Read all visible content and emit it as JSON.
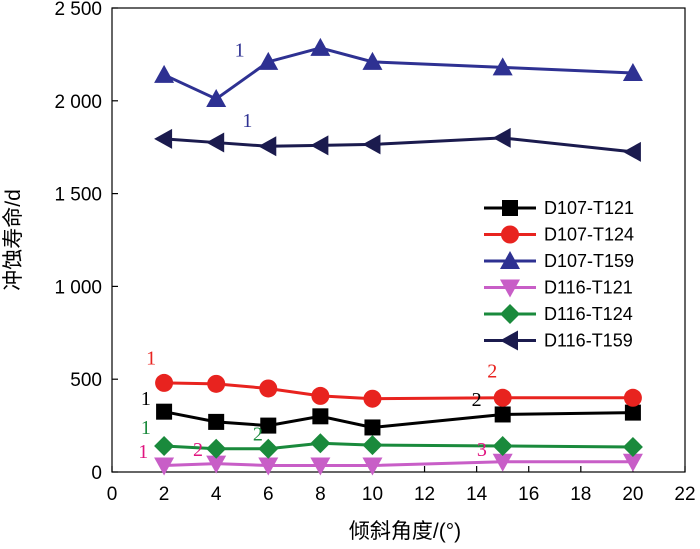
{
  "chart_data": {
    "type": "line",
    "xlabel": "倾斜角度/(°)",
    "ylabel": "冲蚀寿命/d",
    "xlim": [
      0,
      22
    ],
    "ylim": [
      0,
      2500
    ],
    "xticks": [
      "0",
      "2",
      "4",
      "6",
      "8",
      "10",
      "12",
      "14",
      "16",
      "18",
      "20",
      "22"
    ],
    "yticks": [
      "0",
      "500",
      "1 000",
      "1 500",
      "2 000",
      "2 500"
    ],
    "grid": false,
    "legend_position": "right",
    "series": [
      {
        "name": "D107-T121",
        "marker": "square",
        "color": "#000000",
        "x": [
          2,
          4,
          6,
          8,
          10,
          15,
          20
        ],
        "y": [
          325,
          270,
          250,
          300,
          240,
          310,
          320
        ]
      },
      {
        "name": "D107-T124",
        "marker": "circle",
        "color": "#e8231f",
        "x": [
          2,
          4,
          6,
          8,
          10,
          15,
          20
        ],
        "y": [
          480,
          475,
          450,
          410,
          395,
          400,
          400
        ]
      },
      {
        "name": "D107-T159",
        "marker": "triangle-up",
        "color": "#2e3192",
        "x": [
          2,
          4,
          6,
          8,
          10,
          15,
          20
        ],
        "y": [
          2140,
          2010,
          2210,
          2285,
          2210,
          2180,
          2150
        ]
      },
      {
        "name": "D116-T121",
        "marker": "triangle-down",
        "color": "#c85ec7",
        "x": [
          2,
          4,
          6,
          8,
          10,
          15,
          20
        ],
        "y": [
          35,
          45,
          35,
          35,
          35,
          55,
          55
        ]
      },
      {
        "name": "D116-T124",
        "marker": "diamond",
        "color": "#1a8a3c",
        "x": [
          2,
          4,
          6,
          8,
          10,
          15,
          20
        ],
        "y": [
          140,
          125,
          125,
          155,
          145,
          140,
          135
        ]
      },
      {
        "name": "D116-T159",
        "marker": "triangle-left",
        "color": "#1b1b4e",
        "x": [
          2,
          4,
          6,
          8,
          10,
          15,
          20
        ],
        "y": [
          1795,
          1775,
          1755,
          1760,
          1765,
          1800,
          1725
        ]
      }
    ],
    "annotations": [
      {
        "text": "1",
        "x": 4.9,
        "y": 2240,
        "color": "#2e3192"
      },
      {
        "text": "1",
        "x": 5.2,
        "y": 1860,
        "color": "#2e3192"
      },
      {
        "text": "1",
        "x": 1.5,
        "y": 580,
        "color": "#e8231f"
      },
      {
        "text": "2",
        "x": 14.6,
        "y": 510,
        "color": "#e8231f"
      },
      {
        "text": "1",
        "x": 1.3,
        "y": 360,
        "color": "#000000"
      },
      {
        "text": "2",
        "x": 14.0,
        "y": 355,
        "color": "#000000"
      },
      {
        "text": "1",
        "x": 1.3,
        "y": 205,
        "color": "#1a8a3c"
      },
      {
        "text": "2",
        "x": 5.6,
        "y": 170,
        "color": "#1a8a3c"
      },
      {
        "text": "1",
        "x": 1.2,
        "y": 75,
        "color": "#e0147f"
      },
      {
        "text": "2",
        "x": 3.3,
        "y": 85,
        "color": "#e0147f"
      },
      {
        "text": "3",
        "x": 14.2,
        "y": 85,
        "color": "#e0147f"
      }
    ]
  }
}
